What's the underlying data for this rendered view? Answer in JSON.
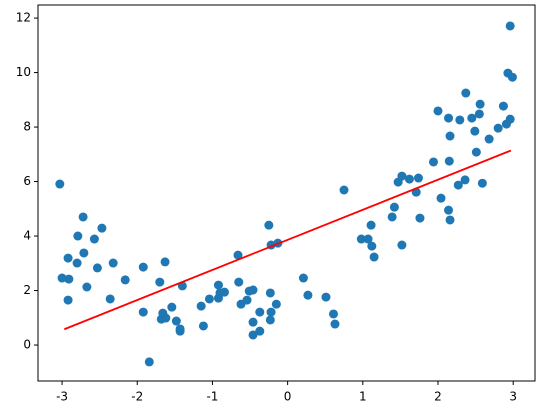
{
  "chart_data": {
    "type": "scatter",
    "xlim": [
      -3.32,
      3.29
    ],
    "ylim": [
      -1.32,
      12.48
    ],
    "xticks": [
      -3,
      -2,
      -1,
      0,
      1,
      2,
      3
    ],
    "yticks": [
      0,
      2,
      4,
      6,
      8,
      10,
      12
    ],
    "series": [
      {
        "type": "scatter",
        "color": "#1f77b4",
        "x": [
          -3.03,
          -3.0,
          -2.92,
          -2.91,
          -2.92,
          -2.8,
          -2.79,
          -2.72,
          -2.71,
          -2.67,
          -2.57,
          -2.53,
          -2.47,
          -2.36,
          -2.32,
          -2.16,
          -1.92,
          -1.92,
          -1.84,
          -1.7,
          -1.63,
          -1.68,
          -1.66,
          -1.62,
          -1.54,
          -1.48,
          -1.43,
          -1.43,
          -1.4,
          -1.15,
          -1.12,
          -1.04,
          -0.92,
          -0.92,
          -0.9,
          -0.84,
          -0.66,
          -0.65,
          -0.62,
          -0.54,
          -0.51,
          -0.46,
          -0.46,
          -0.46,
          -0.37,
          -0.37,
          -0.25,
          -0.23,
          -0.22,
          -0.22,
          -0.23,
          -0.15,
          -0.13,
          0.21,
          0.27,
          0.51,
          0.61,
          0.63,
          0.75,
          0.98,
          1.07,
          1.11,
          1.12,
          1.15,
          1.39,
          1.42,
          1.47,
          1.52,
          1.52,
          1.62,
          1.71,
          1.74,
          1.76,
          1.94,
          2.0,
          2.04,
          2.14,
          2.15,
          2.14,
          2.16,
          2.16,
          2.27,
          2.29,
          2.36,
          2.37,
          2.45,
          2.49,
          2.51,
          2.55,
          2.56,
          2.59,
          2.68,
          2.8,
          2.87,
          2.91,
          2.93,
          2.96,
          2.99,
          2.96
        ],
        "values": [
          5.91,
          2.46,
          3.19,
          2.42,
          1.65,
          3.01,
          4.0,
          4.7,
          3.38,
          2.13,
          3.89,
          2.83,
          4.29,
          1.69,
          3.01,
          2.39,
          2.86,
          1.21,
          -0.62,
          2.31,
          3.05,
          0.95,
          1.17,
          0.99,
          1.39,
          0.88,
          0.59,
          0.51,
          2.17,
          1.43,
          0.7,
          1.69,
          2.2,
          1.72,
          1.91,
          1.94,
          3.3,
          2.31,
          1.5,
          1.65,
          1.98,
          2.02,
          0.84,
          0.37,
          1.21,
          0.51,
          4.4,
          1.91,
          3.67,
          1.21,
          0.92,
          1.5,
          3.74,
          2.46,
          1.83,
          1.76,
          1.14,
          0.77,
          5.69,
          3.89,
          3.89,
          4.4,
          3.63,
          3.23,
          4.7,
          5.06,
          5.98,
          6.2,
          3.67,
          6.09,
          5.61,
          6.13,
          4.66,
          6.72,
          8.59,
          5.39,
          8.33,
          6.75,
          4.95,
          7.67,
          4.59,
          5.87,
          8.26,
          6.06,
          9.25,
          8.33,
          7.85,
          7.08,
          8.48,
          8.84,
          5.94,
          7.56,
          7.96,
          8.77,
          8.11,
          9.98,
          8.29,
          9.83,
          11.71
        ]
      },
      {
        "type": "line",
        "color": "#ff0000",
        "x": [
          -2.97,
          2.97
        ],
        "values": [
          0.58,
          7.14
        ]
      }
    ]
  }
}
